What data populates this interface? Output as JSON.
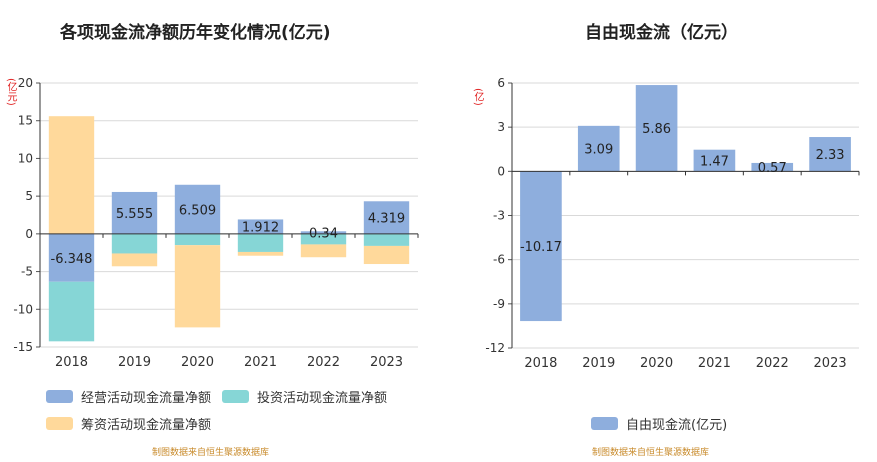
{
  "left_chart_title": "各项现金流净额历年变化情况(亿元)",
  "right_chart_title": "自由现金流（亿元）",
  "left_unit": "(亿元)",
  "right_unit": "(亿)",
  "source_text": "制图数据来自恒生聚源数据库",
  "colors": {
    "operating": "#8eaedd",
    "investing": "#86d6d6",
    "financing": "#ffd99b",
    "fcf": "#8eaedd"
  },
  "chart_data": [
    {
      "type": "bar",
      "stacked": true,
      "title": "各项现金流净额历年变化情况(亿元)",
      "ylabel": "(亿元)",
      "categories": [
        "2018",
        "2019",
        "2020",
        "2021",
        "2022",
        "2023"
      ],
      "ylim": [
        -15,
        20
      ],
      "yticks": [
        20,
        15,
        10,
        5,
        0,
        -5,
        -10,
        -15
      ],
      "grid": true,
      "legend_position": "bottom",
      "series": [
        {
          "name": "经营活动现金流量净额",
          "values": [
            -6.348,
            5.555,
            6.509,
            1.912,
            0.34,
            4.319
          ],
          "labels": [
            "-6.348",
            "5.555",
            "6.509",
            "1.912",
            "0.34",
            "4.319"
          ]
        },
        {
          "name": "投资活动现金流量净额",
          "values": [
            -7.9,
            -2.6,
            -1.5,
            -2.4,
            -1.4,
            -1.6
          ]
        },
        {
          "name": "筹资活动现金流量净额",
          "values": [
            15.6,
            -1.7,
            -10.9,
            -0.5,
            -1.7,
            -2.4
          ]
        }
      ]
    },
    {
      "type": "bar",
      "title": "自由现金流（亿元）",
      "ylabel": "(亿)",
      "categories": [
        "2018",
        "2019",
        "2020",
        "2021",
        "2022",
        "2023"
      ],
      "ylim": [
        -12,
        6
      ],
      "yticks": [
        6,
        3,
        0,
        -3,
        -6,
        -9,
        -12
      ],
      "grid": true,
      "legend_position": "bottom",
      "series": [
        {
          "name": "自由现金流(亿元)",
          "values": [
            -10.17,
            3.09,
            5.86,
            1.47,
            0.57,
            2.33
          ],
          "labels": [
            "-10.17",
            "3.09",
            "5.86",
            "1.47",
            "0.57",
            "2.33"
          ]
        }
      ]
    }
  ]
}
